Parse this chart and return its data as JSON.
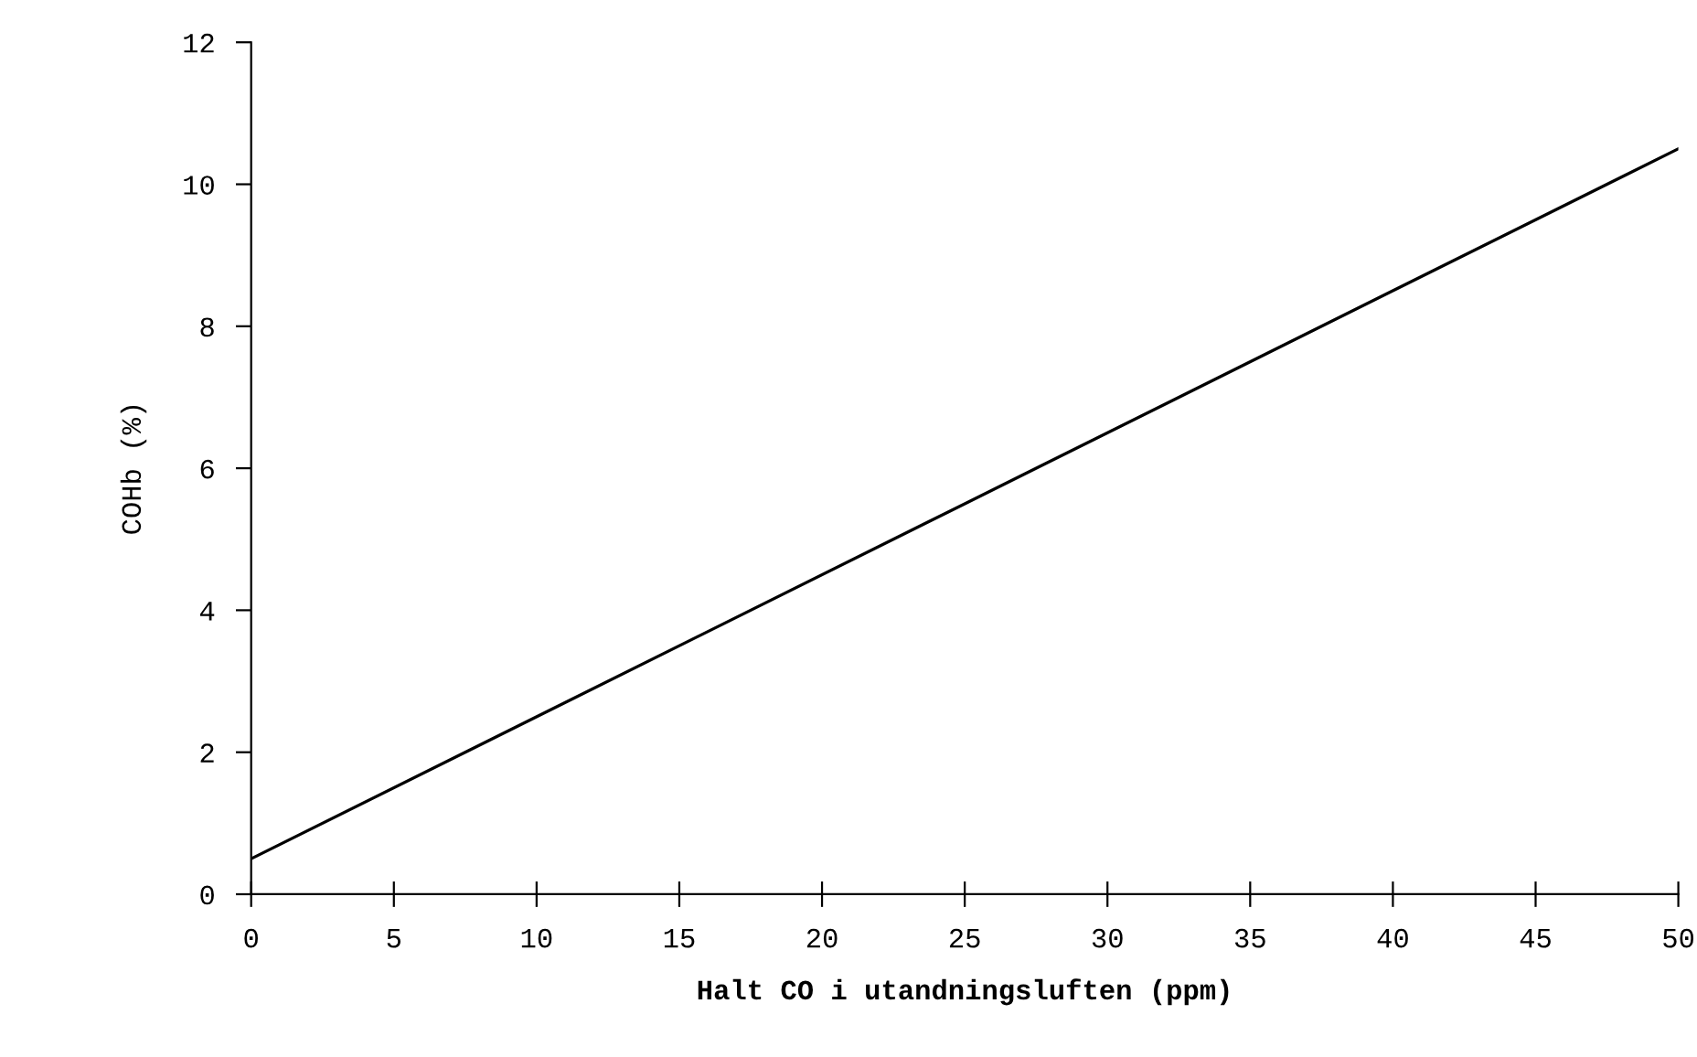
{
  "chart_data": {
    "type": "line",
    "xlabel": "Halt CO i utandningsluften (ppm)",
    "ylabel": "COHb (%)",
    "x": [
      0,
      25,
      50
    ],
    "series": [
      {
        "color": "#000000",
        "values": [
          0.5,
          5.5,
          10.5
        ]
      }
    ],
    "xlim": [
      0,
      50
    ],
    "xticks": [
      0,
      5,
      10,
      15,
      20,
      25,
      30,
      35,
      40,
      45,
      50
    ],
    "ylim": [
      0,
      12
    ],
    "yticks": [
      0,
      2,
      4,
      6,
      8,
      10,
      12
    ],
    "grid": false,
    "legend": false,
    "marker": "none",
    "line_style": "solid"
  }
}
